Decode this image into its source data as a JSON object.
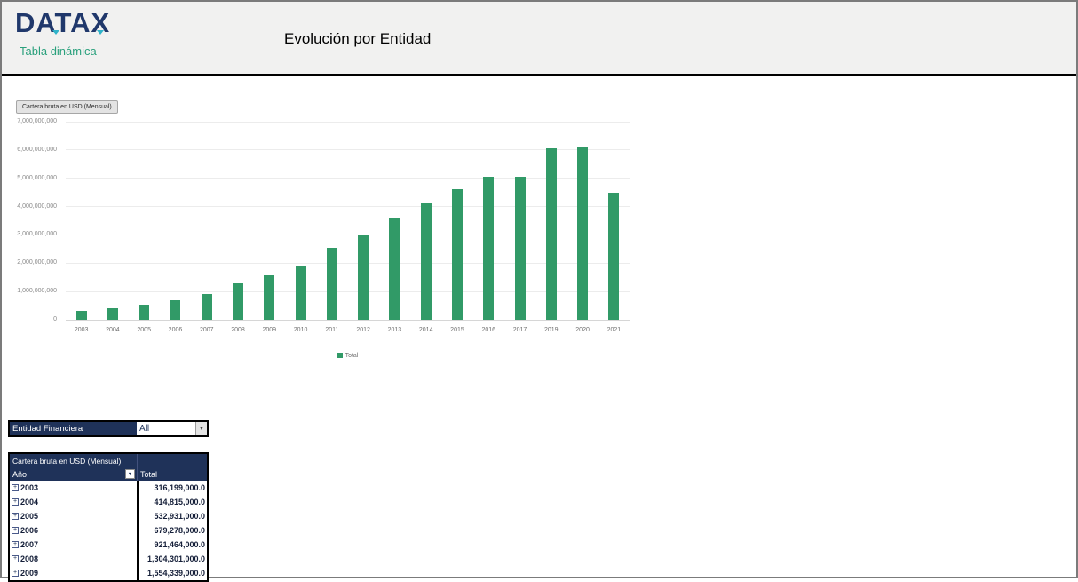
{
  "header": {
    "logo_text": "DATAX",
    "logo_subtitle": "Tabla dinámica",
    "page_title": "Evolución por Entidad"
  },
  "colors": {
    "navy": "#1f3259",
    "logo_navy": "#20386b",
    "bar_green": "#319a67",
    "subtitle_green": "#2aa07c"
  },
  "chart_data": {
    "type": "bar",
    "title": "",
    "field_button_label": "Cartera bruta en USD (Mensual)",
    "categories": [
      "2003",
      "2004",
      "2005",
      "2006",
      "2007",
      "2008",
      "2009",
      "2010",
      "2011",
      "2012",
      "2013",
      "2014",
      "2015",
      "2016",
      "2017",
      "2019",
      "2020",
      "2021"
    ],
    "series": [
      {
        "name": "Total",
        "values": [
          316199000,
          414815000,
          532931000,
          679278000,
          921464000,
          1304301000,
          1554339000,
          1900000000,
          2550000000,
          3020000000,
          3600000000,
          4120000000,
          4600000000,
          5050000000,
          5050000000,
          6050000000,
          6120000000,
          4500000000
        ]
      }
    ],
    "ylim": [
      0,
      7000000000
    ],
    "ytick_labels": [
      "0",
      "1,000,000,000",
      "2,000,000,000",
      "3,000,000,000",
      "4,000,000,000",
      "5,000,000,000",
      "6,000,000,000",
      "7,000,000,000"
    ],
    "grid": true,
    "legend": [
      "Total"
    ],
    "legend_position": "bottom",
    "xlabel": "",
    "ylabel": ""
  },
  "filter": {
    "label": "Entidad Financiera",
    "value": "All",
    "dropdown_icon": "▼"
  },
  "pivot_table": {
    "title": "Cartera bruta en USD (Mensual)",
    "row_header": "Año",
    "value_header": "Total",
    "filter_icon": "▼",
    "expand_icon": "+",
    "rows": [
      {
        "year": "2003",
        "total": "316,199,000.0"
      },
      {
        "year": "2004",
        "total": "414,815,000.0"
      },
      {
        "year": "2005",
        "total": "532,931,000.0"
      },
      {
        "year": "2006",
        "total": "679,278,000.0"
      },
      {
        "year": "2007",
        "total": "921,464,000.0"
      },
      {
        "year": "2008",
        "total": "1,304,301,000.0"
      },
      {
        "year": "2009",
        "total": "1,554,339,000.0"
      }
    ]
  }
}
